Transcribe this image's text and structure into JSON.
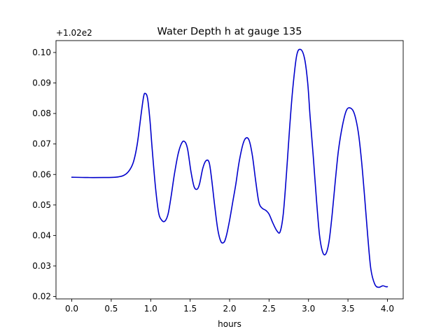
{
  "chart_data": {
    "type": "line",
    "title": "Water Depth h at gauge 135",
    "xlabel": "hours",
    "ylabel": "",
    "y_offset_label": "+1.02e2",
    "xlim": [
      -0.2,
      4.2
    ],
    "ylim": [
      0.0192,
      0.1039
    ],
    "x_ticks": [
      0.0,
      0.5,
      1.0,
      1.5,
      2.0,
      2.5,
      3.0,
      3.5,
      4.0
    ],
    "x_tick_labels": [
      "0.0",
      "0.5",
      "1.0",
      "1.5",
      "2.0",
      "2.5",
      "3.0",
      "3.5",
      "4.0"
    ],
    "y_ticks": [
      0.02,
      0.03,
      0.04,
      0.05,
      0.06,
      0.07,
      0.08,
      0.09,
      0.1
    ],
    "y_tick_labels": [
      "0.02",
      "0.03",
      "0.04",
      "0.05",
      "0.06",
      "0.07",
      "0.08",
      "0.09",
      "0.10"
    ],
    "grid": false,
    "series": [
      {
        "color": "#0000cc",
        "x": [
          0.0,
          0.2,
          0.4,
          0.55,
          0.65,
          0.72,
          0.78,
          0.83,
          0.88,
          0.91,
          0.93,
          0.96,
          0.99,
          1.02,
          1.06,
          1.1,
          1.14,
          1.18,
          1.22,
          1.26,
          1.3,
          1.35,
          1.4,
          1.44,
          1.47,
          1.51,
          1.55,
          1.59,
          1.62,
          1.66,
          1.7,
          1.74,
          1.77,
          1.81,
          1.85,
          1.89,
          1.93,
          1.96,
          2.0,
          2.04,
          2.08,
          2.12,
          2.17,
          2.21,
          2.25,
          2.29,
          2.33,
          2.37,
          2.41,
          2.46,
          2.5,
          2.55,
          2.6,
          2.64,
          2.68,
          2.72,
          2.76,
          2.8,
          2.85,
          2.9,
          2.95,
          2.99,
          3.02,
          3.06,
          3.1,
          3.14,
          3.18,
          3.22,
          3.26,
          3.3,
          3.34,
          3.38,
          3.43,
          3.48,
          3.53,
          3.58,
          3.63,
          3.67,
          3.71,
          3.75,
          3.79,
          3.84,
          3.89,
          3.94,
          3.98,
          4.0
        ],
        "y": [
          0.0591,
          0.059,
          0.059,
          0.0591,
          0.0596,
          0.061,
          0.064,
          0.07,
          0.08,
          0.0855,
          0.0866,
          0.085,
          0.078,
          0.068,
          0.056,
          0.0475,
          0.045,
          0.0447,
          0.047,
          0.053,
          0.06,
          0.067,
          0.0706,
          0.0705,
          0.068,
          0.061,
          0.056,
          0.0552,
          0.057,
          0.062,
          0.0645,
          0.064,
          0.059,
          0.05,
          0.042,
          0.038,
          0.0378,
          0.04,
          0.045,
          0.051,
          0.057,
          0.064,
          0.07,
          0.072,
          0.071,
          0.066,
          0.058,
          0.051,
          0.049,
          0.0482,
          0.047,
          0.044,
          0.0415,
          0.0412,
          0.047,
          0.06,
          0.075,
          0.088,
          0.099,
          0.101,
          0.098,
          0.09,
          0.079,
          0.066,
          0.052,
          0.04,
          0.0345,
          0.034,
          0.038,
          0.047,
          0.058,
          0.068,
          0.076,
          0.081,
          0.0818,
          0.08,
          0.074,
          0.065,
          0.053,
          0.04,
          0.029,
          0.024,
          0.023,
          0.0235,
          0.0232,
          0.0232
        ]
      }
    ]
  }
}
